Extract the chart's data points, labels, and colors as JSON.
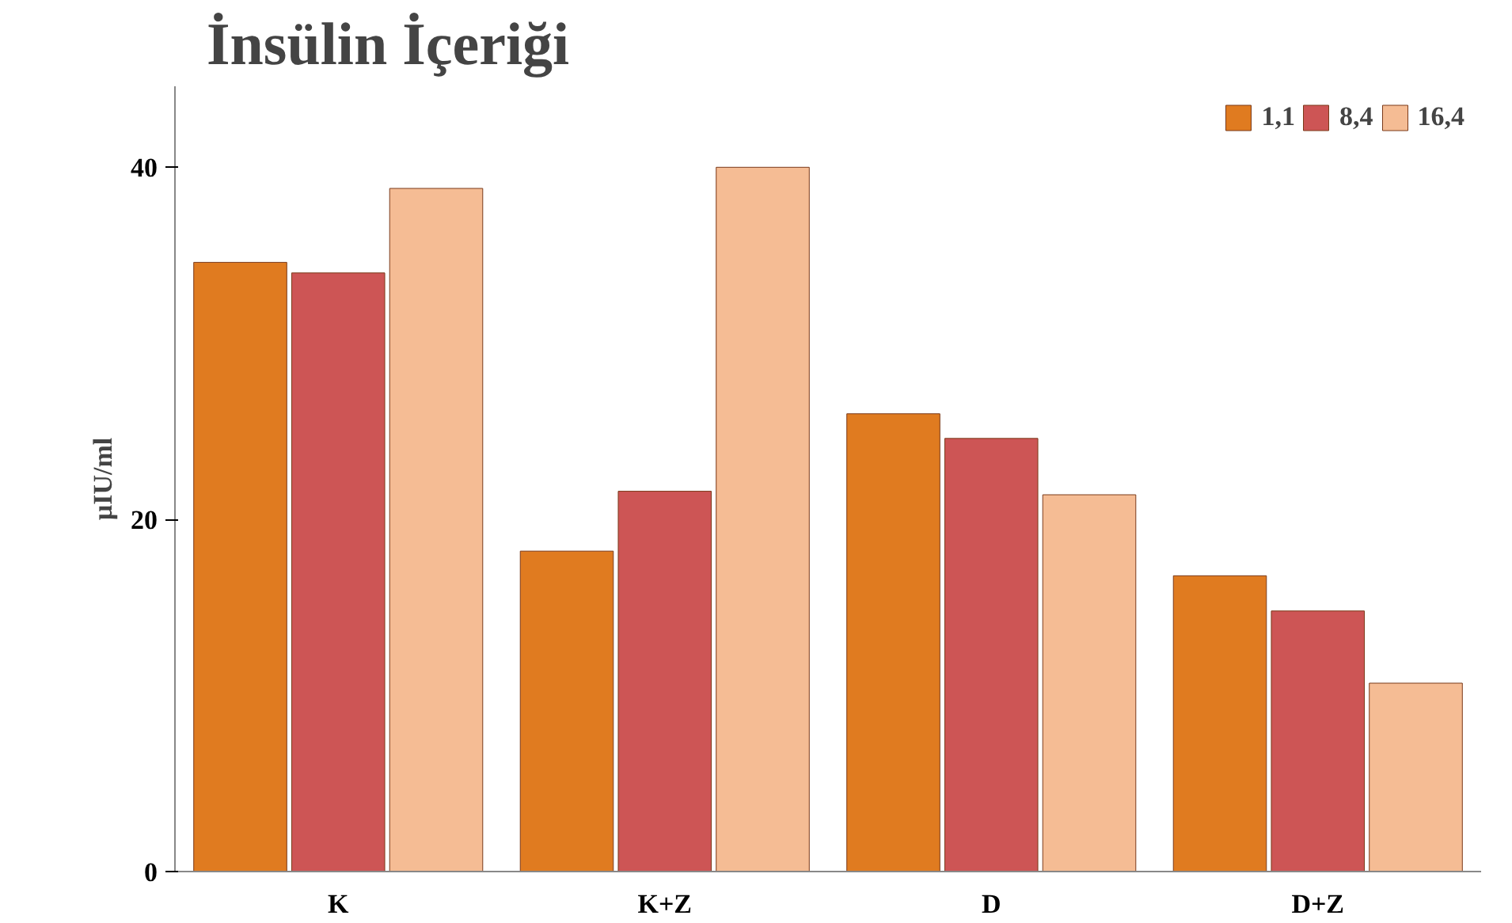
{
  "chart_data": {
    "type": "bar",
    "title": "İnsülin İçeriği",
    "ylabel": "µIU/ml",
    "categories": [
      "K",
      "K+Z",
      "D",
      "D+Z"
    ],
    "series": [
      {
        "name": "1,1",
        "color": "#e07b20",
        "values": [
          34.6,
          18.2,
          26.0,
          16.8
        ]
      },
      {
        "name": "8,4",
        "color": "#cd5555",
        "values": [
          34.0,
          21.6,
          24.6,
          14.8
        ]
      },
      {
        "name": "16,4",
        "color": "#f5bc94",
        "values": [
          38.8,
          40.0,
          21.4,
          10.7
        ]
      }
    ],
    "ylim": [
      0,
      44.6
    ],
    "yticks": [
      0,
      20,
      40
    ],
    "grid": false,
    "legend": "top right"
  }
}
